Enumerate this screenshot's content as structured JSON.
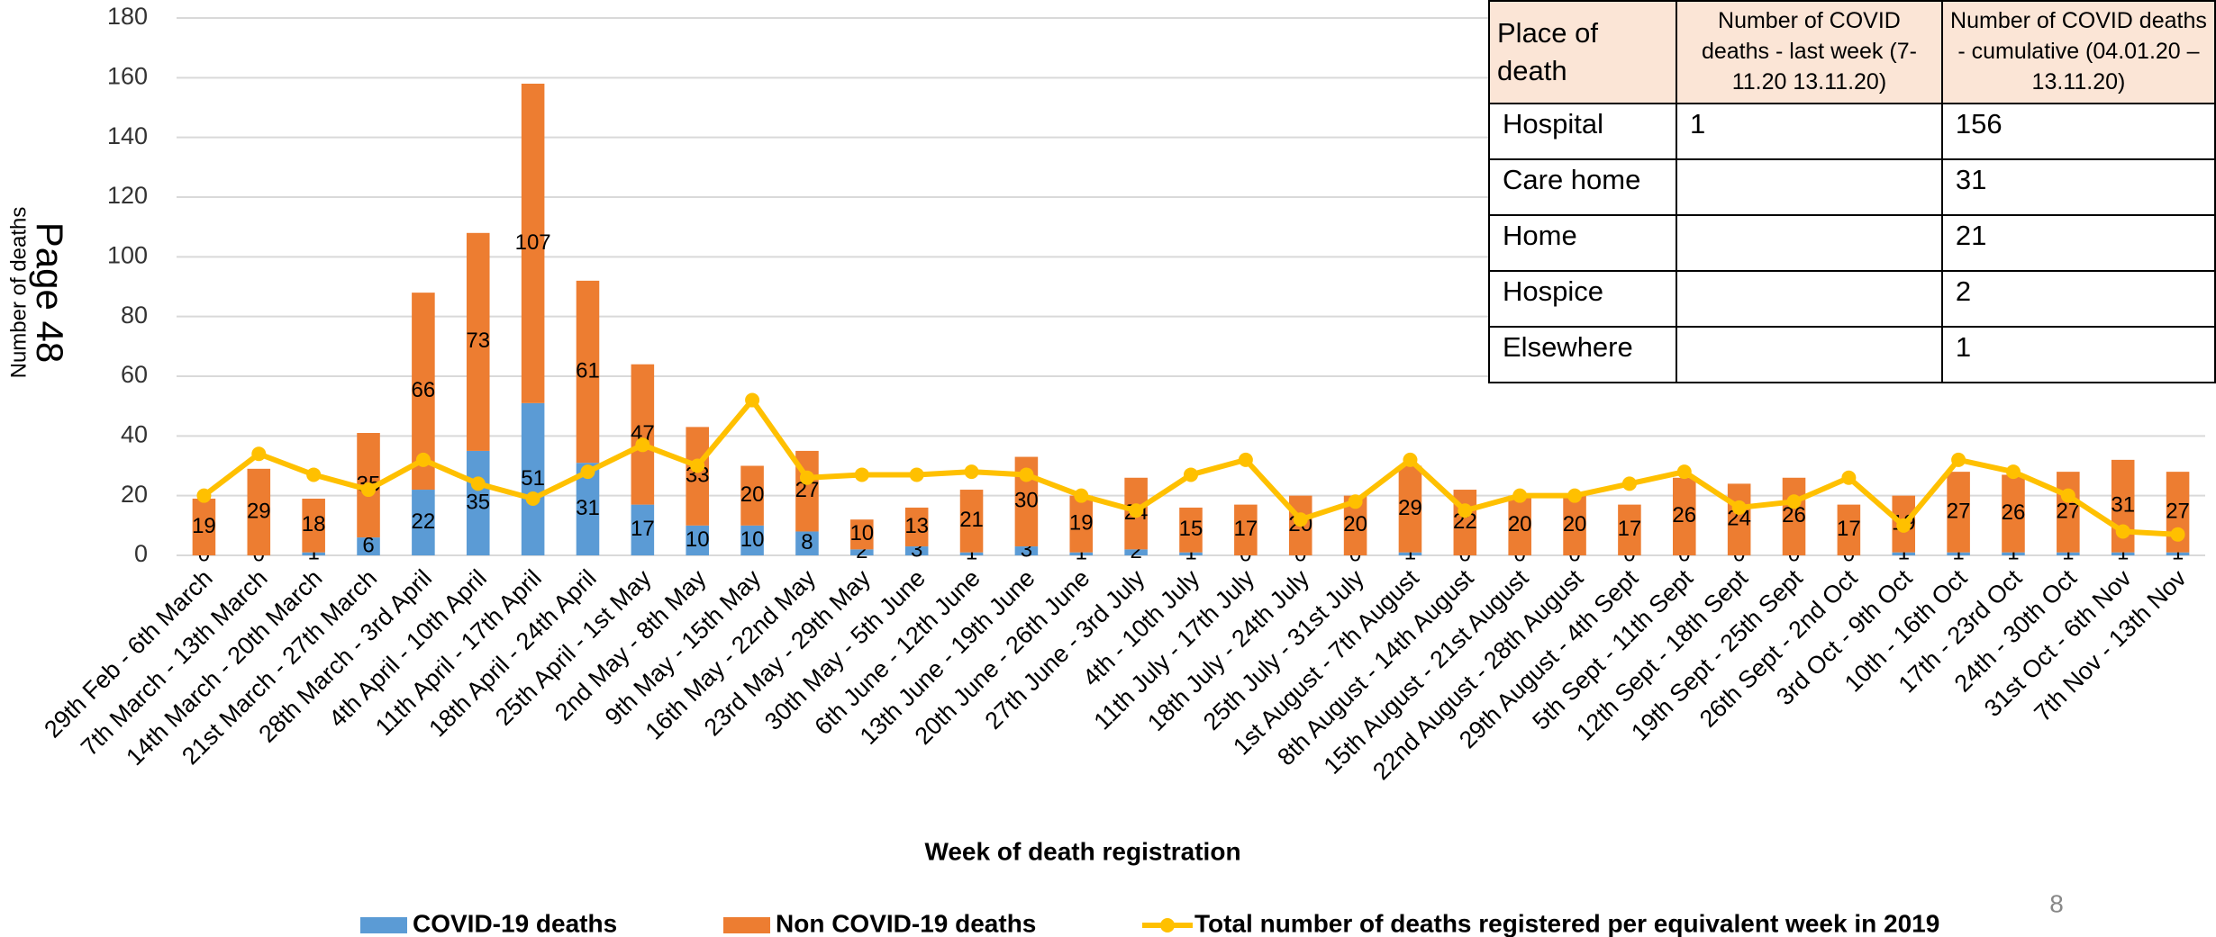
{
  "chart_data": {
    "type": "bar",
    "stacked": true,
    "x_label": "Week of death registration",
    "y_label": "Number of deaths",
    "categories": [
      "29th Feb - 6th March",
      "7th March - 13th March",
      "14th March - 20th March",
      "21st March - 27th March",
      "28th March - 3rd April",
      "4th April - 10th April",
      "11th April - 17th April",
      "18th April - 24th April",
      "25th April - 1st May",
      "2nd May - 8th May",
      "9th May - 15th May",
      "16th May - 22nd May",
      "23rd May - 29th May",
      "30th May - 5th June",
      "6th June - 12th June",
      "13th June - 19th June",
      "20th June - 26th June",
      "27th June - 3rd July",
      "4th - 10th July",
      "11th July - 17th July",
      "18th July - 24th July",
      "25th July - 31st July",
      "1st August - 7th August",
      "8th August - 14th August",
      "15th August - 21st August",
      "22nd August - 28th August",
      "29th August - 4th Sept",
      "5th Sept - 11th Sept",
      "12th Sept - 18th Sept",
      "19th Sept - 25th Sept",
      "26th Sept - 2nd Oct",
      "3rd Oct - 9th Oct",
      "10th - 16th Oct",
      "17th - 23rd Oct",
      "24th - 30th Oct",
      "31st Oct - 6th Nov",
      "7th Nov - 13th Nov"
    ],
    "series": [
      {
        "name": "COVID-19 deaths",
        "color": "#5b9bd5",
        "type": "bar",
        "values": [
          0,
          0,
          1,
          6,
          22,
          35,
          51,
          31,
          17,
          10,
          10,
          8,
          2,
          3,
          1,
          3,
          1,
          2,
          1,
          0,
          0,
          0,
          1,
          0,
          0,
          0,
          0,
          0,
          0,
          0,
          0,
          1,
          1,
          1,
          1,
          1,
          1
        ]
      },
      {
        "name": "Non COVID-19 deaths",
        "color": "#ed7d31",
        "type": "bar",
        "values": [
          19,
          29,
          18,
          35,
          66,
          73,
          107,
          61,
          47,
          33,
          20,
          27,
          10,
          13,
          21,
          30,
          19,
          24,
          15,
          17,
          20,
          20,
          29,
          22,
          20,
          20,
          17,
          26,
          24,
          26,
          17,
          19,
          27,
          26,
          27,
          31,
          27
        ]
      },
      {
        "name": "Total number of deaths registered per equivalent week in 2019",
        "color": "#ffc000",
        "type": "line",
        "values": [
          20,
          34,
          27,
          22,
          32,
          24,
          19,
          28,
          37,
          30,
          52,
          26,
          27,
          27,
          28,
          27,
          20,
          15,
          27,
          32,
          12,
          18,
          32,
          15,
          20,
          20,
          24,
          28,
          16,
          18,
          26,
          10,
          32,
          28,
          20,
          8,
          7
        ]
      }
    ],
    "ylim": [
      0,
      180
    ],
    "yticks": [
      0,
      20,
      40,
      60,
      80,
      100,
      120,
      140,
      160,
      180
    ],
    "grid": true
  },
  "table": {
    "header": [
      "Place of death",
      "Number of COVID deaths - last week (7-11.20  13.11.20)",
      "Number of COVID deaths - cumulative (04.01.20 – 13.11.20)"
    ],
    "rows": [
      [
        "Hospital",
        1,
        156
      ],
      [
        "Care home",
        null,
        31
      ],
      [
        "Home",
        null,
        21
      ],
      [
        "Hospice",
        null,
        2
      ],
      [
        "Elsewhere",
        null,
        1
      ]
    ]
  },
  "page_label": "Page 48",
  "page_number": 8
}
